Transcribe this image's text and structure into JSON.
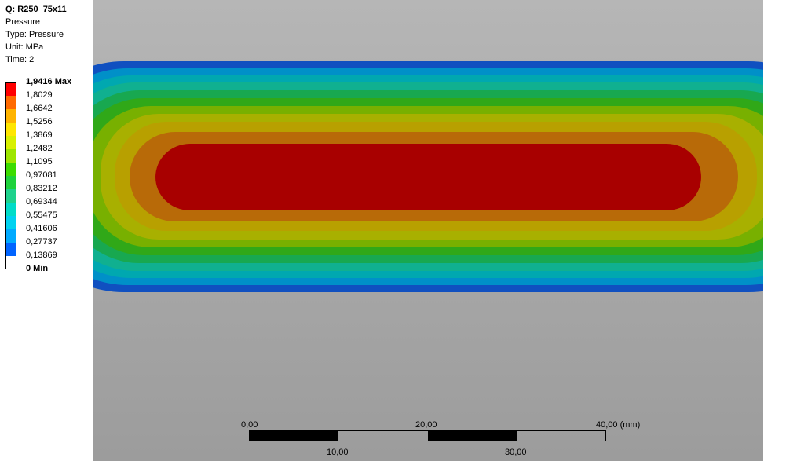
{
  "info": {
    "title": "Q: R250_75x11",
    "name": "Pressure",
    "type": "Type: Pressure",
    "unit": "Unit: MPa",
    "time": "Time: 2"
  },
  "legend": [
    {
      "label": "1,9416 Max",
      "color": "#ff0000",
      "bold": true
    },
    {
      "label": "1,8029",
      "color": "#ff6a00"
    },
    {
      "label": "1,6642",
      "color": "#ffb400"
    },
    {
      "label": "1,5256",
      "color": "#ffe600"
    },
    {
      "label": "1,3869",
      "color": "#d8f000"
    },
    {
      "label": "1,2482",
      "color": "#9ee600"
    },
    {
      "label": "1,1095",
      "color": "#3cdc00"
    },
    {
      "label": "0,97081",
      "color": "#1ed23c"
    },
    {
      "label": "0,83212",
      "color": "#1ed28c"
    },
    {
      "label": "0,69344",
      "color": "#00dcc8"
    },
    {
      "label": "0,55475",
      "color": "#00d2f0"
    },
    {
      "label": "0,41606",
      "color": "#00aaff"
    },
    {
      "label": "0,27737",
      "color": "#0064ff"
    },
    {
      "label": "0,13869",
      "color": "#ffffff"
    },
    {
      "label": "0 Min",
      "color": null,
      "bold": true
    }
  ],
  "contour_colors": [
    "#1050c0",
    "#0090c8",
    "#00a8b0",
    "#10b090",
    "#18a850",
    "#30a818",
    "#78b000",
    "#a8b000",
    "#b8a000",
    "#b86a08",
    "#a80000"
  ],
  "scale_bar": {
    "labels_top": [
      "0,00",
      "20,00",
      "40,00 (mm)"
    ],
    "labels_bottom": [
      "10,00",
      "30,00"
    ]
  }
}
